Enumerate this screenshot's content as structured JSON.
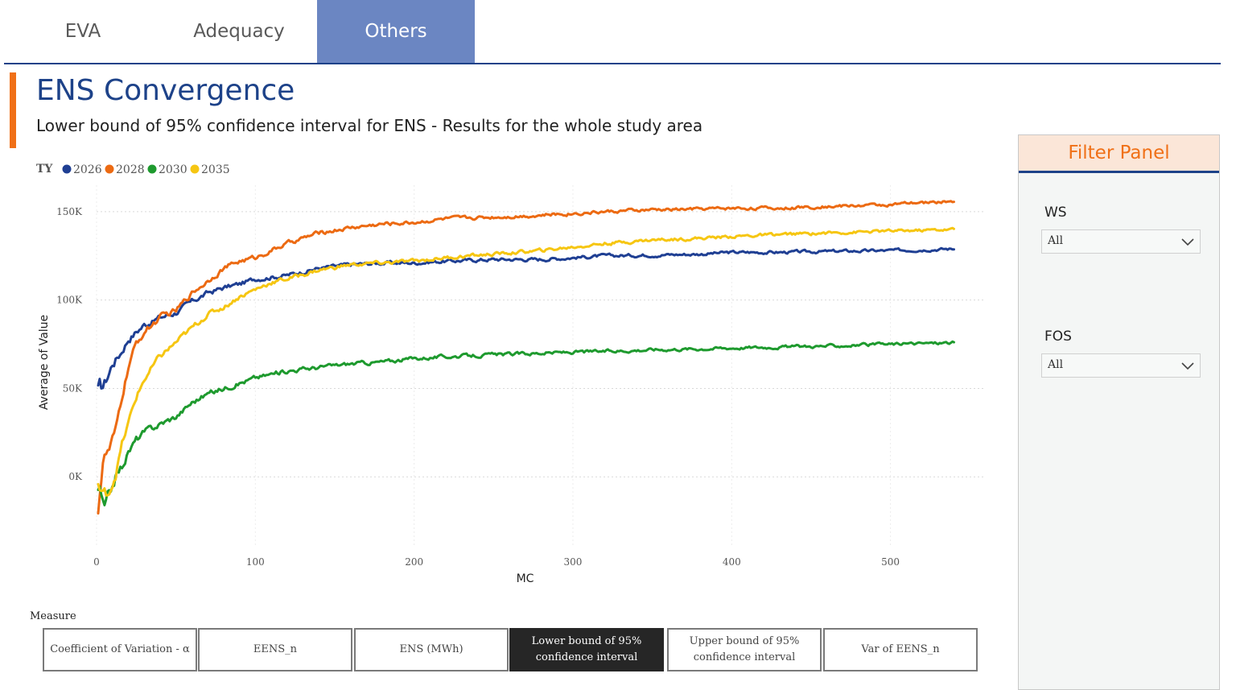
{
  "tabs": [
    {
      "label": "EVA",
      "active": false
    },
    {
      "label": "Adequacy",
      "active": false
    },
    {
      "label": "Others",
      "active": true
    }
  ],
  "header": {
    "title": "ENS Convergence",
    "subtitle": "Lower bound of 95% confidence interval for ENS - Results for the whole study area"
  },
  "filter_panel": {
    "title": "Filter Panel",
    "filters": [
      {
        "label": "WS",
        "value": "All"
      },
      {
        "label": "FOS",
        "value": "All"
      }
    ]
  },
  "measure": {
    "label": "Measure",
    "options": [
      "Coefficient of Variation - α",
      "EENS_n",
      "ENS (MWh)",
      "Lower bound of 95% confidence interval",
      "Upper bound of 95% confidence interval",
      "Var of EENS_n"
    ],
    "selected": "Lower bound of 95% confidence interval"
  },
  "colors": {
    "accent": "#f07017",
    "brand": "#1d4289",
    "tab_active": "#6b86c2"
  },
  "chart_data": {
    "type": "line",
    "xlabel": "MC",
    "ylabel": "Average of Value",
    "legend_title": "TY",
    "legend_position": "top-left",
    "grid": true,
    "xlim": [
      0,
      560
    ],
    "ylim": [
      -40000,
      165000
    ],
    "xticks": [
      0,
      100,
      200,
      300,
      400,
      500
    ],
    "yticks": [
      0,
      50000,
      100000,
      150000
    ],
    "ytick_labels": [
      "0K",
      "50K",
      "100K",
      "150K"
    ],
    "series": [
      {
        "name": "2026",
        "color": "#1f3f93",
        "points": [
          [
            1,
            46000
          ],
          [
            5,
            52000
          ],
          [
            10,
            64000
          ],
          [
            15,
            70000
          ],
          [
            20,
            78000
          ],
          [
            25,
            82000
          ],
          [
            30,
            86000
          ],
          [
            40,
            90000
          ],
          [
            50,
            93000
          ],
          [
            60,
            99000
          ],
          [
            70,
            104000
          ],
          [
            80,
            107000
          ],
          [
            90,
            109000
          ],
          [
            100,
            112000
          ],
          [
            120,
            114000
          ],
          [
            140,
            118000
          ],
          [
            160,
            120000
          ],
          [
            180,
            121000
          ],
          [
            200,
            121000
          ],
          [
            220,
            122000
          ],
          [
            250,
            123000
          ],
          [
            280,
            123000
          ],
          [
            300,
            124000
          ],
          [
            320,
            125000
          ],
          [
            350,
            125500
          ],
          [
            380,
            126000
          ],
          [
            400,
            127000
          ],
          [
            430,
            127000
          ],
          [
            460,
            127500
          ],
          [
            500,
            128000
          ],
          [
            540,
            129000
          ]
        ]
      },
      {
        "name": "2028",
        "color": "#ec6a12",
        "points": [
          [
            1,
            -15000
          ],
          [
            4,
            10000
          ],
          [
            8,
            15000
          ],
          [
            12,
            25000
          ],
          [
            16,
            45000
          ],
          [
            20,
            62000
          ],
          [
            25,
            75000
          ],
          [
            30,
            82000
          ],
          [
            40,
            90000
          ],
          [
            50,
            94000
          ],
          [
            60,
            104000
          ],
          [
            70,
            111000
          ],
          [
            80,
            118000
          ],
          [
            90,
            122000
          ],
          [
            100,
            124000
          ],
          [
            110,
            128000
          ],
          [
            120,
            132000
          ],
          [
            140,
            138000
          ],
          [
            160,
            141000
          ],
          [
            180,
            143000
          ],
          [
            200,
            144000
          ],
          [
            220,
            146000
          ],
          [
            250,
            147000
          ],
          [
            280,
            148000
          ],
          [
            300,
            149000
          ],
          [
            320,
            150000
          ],
          [
            350,
            151000
          ],
          [
            380,
            151500
          ],
          [
            400,
            152000
          ],
          [
            430,
            152000
          ],
          [
            460,
            153000
          ],
          [
            500,
            154000
          ],
          [
            540,
            156000
          ]
        ]
      },
      {
        "name": "2030",
        "color": "#1e9a2e",
        "points": [
          [
            1,
            -5000
          ],
          [
            3,
            -12000
          ],
          [
            5,
            -20000
          ],
          [
            8,
            -10000
          ],
          [
            12,
            0
          ],
          [
            16,
            6000
          ],
          [
            20,
            14000
          ],
          [
            25,
            21000
          ],
          [
            30,
            25000
          ],
          [
            40,
            30000
          ],
          [
            50,
            34000
          ],
          [
            60,
            42000
          ],
          [
            70,
            47000
          ],
          [
            80,
            50000
          ],
          [
            90,
            53000
          ],
          [
            100,
            56000
          ],
          [
            110,
            58000
          ],
          [
            120,
            60000
          ],
          [
            140,
            62000
          ],
          [
            160,
            64000
          ],
          [
            180,
            65000
          ],
          [
            200,
            67000
          ],
          [
            220,
            68000
          ],
          [
            250,
            69000
          ],
          [
            280,
            70000
          ],
          [
            300,
            70500
          ],
          [
            320,
            71000
          ],
          [
            350,
            72000
          ],
          [
            380,
            72500
          ],
          [
            400,
            73000
          ],
          [
            430,
            73500
          ],
          [
            460,
            74000
          ],
          [
            500,
            75000
          ],
          [
            540,
            76000
          ]
        ]
      },
      {
        "name": "2035",
        "color": "#f6c612",
        "points": [
          [
            1,
            -5000
          ],
          [
            4,
            -12000
          ],
          [
            8,
            -8000
          ],
          [
            12,
            2000
          ],
          [
            16,
            18000
          ],
          [
            20,
            30000
          ],
          [
            25,
            45000
          ],
          [
            30,
            55000
          ],
          [
            40,
            68000
          ],
          [
            50,
            76000
          ],
          [
            60,
            84000
          ],
          [
            70,
            92000
          ],
          [
            80,
            96000
          ],
          [
            90,
            102000
          ],
          [
            100,
            106000
          ],
          [
            110,
            110000
          ],
          [
            120,
            112000
          ],
          [
            140,
            117000
          ],
          [
            160,
            120000
          ],
          [
            180,
            121000
          ],
          [
            200,
            122000
          ],
          [
            220,
            124000
          ],
          [
            250,
            126000
          ],
          [
            280,
            128000
          ],
          [
            300,
            130000
          ],
          [
            320,
            132000
          ],
          [
            350,
            134000
          ],
          [
            380,
            135000
          ],
          [
            400,
            136000
          ],
          [
            430,
            137000
          ],
          [
            460,
            138000
          ],
          [
            500,
            139000
          ],
          [
            540,
            140000
          ]
        ]
      }
    ]
  }
}
